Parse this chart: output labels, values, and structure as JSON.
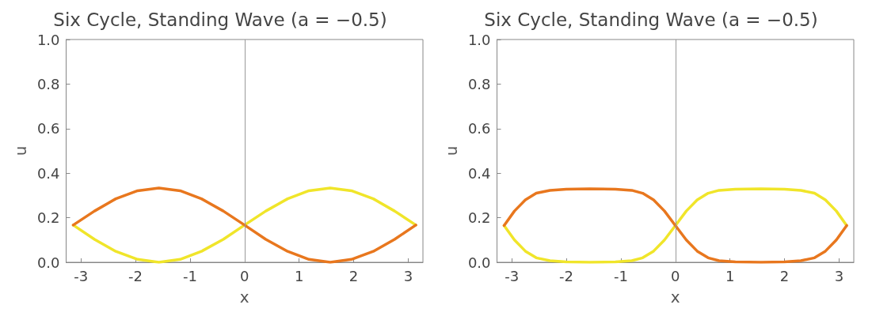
{
  "chart_data": [
    {
      "type": "line",
      "title": "Six Cycle, Standing Wave (a = −0.5)",
      "xlabel": "x",
      "ylabel": "u",
      "xlim": [
        -3.27,
        3.27
      ],
      "ylim": [
        0,
        1
      ],
      "xticks": [
        -3,
        -2,
        -1,
        0,
        1,
        2,
        3
      ],
      "yticks": [
        {
          "value": 0,
          "label": "0.0"
        },
        {
          "value": 0.2,
          "label": "0.2"
        },
        {
          "value": 0.4,
          "label": "0.4"
        },
        {
          "value": 0.6,
          "label": "0.6"
        },
        {
          "value": 0.8,
          "label": "0.8"
        },
        {
          "value": 1,
          "label": "1.0"
        }
      ],
      "grid": false,
      "marker": "none",
      "line_style": "solid",
      "ref_lines": [
        {
          "axis": "x",
          "value": 0,
          "color": "#999999"
        }
      ],
      "x": [
        -3.14,
        -2.75,
        -2.36,
        -1.96,
        -1.57,
        -1.18,
        -0.79,
        -0.39,
        0,
        0.39,
        0.79,
        1.18,
        1.57,
        1.96,
        2.36,
        2.75,
        3.14
      ],
      "series": [
        {
          "color": "#f0e52a",
          "values": [
            0.167,
            0.103,
            0.049,
            0.013,
            0,
            0.013,
            0.049,
            0.103,
            0.167,
            0.23,
            0.285,
            0.321,
            0.333,
            0.321,
            0.285,
            0.23,
            0.167
          ]
        },
        {
          "color": "#e8771e",
          "values": [
            0.167,
            0.23,
            0.285,
            0.321,
            0.333,
            0.321,
            0.285,
            0.23,
            0.167,
            0.103,
            0.049,
            0.013,
            0,
            0.013,
            0.049,
            0.103,
            0.167
          ]
        }
      ]
    },
    {
      "type": "line",
      "title": "Six Cycle, Standing Wave (a = −0.5)",
      "xlabel": "x",
      "ylabel": "u",
      "xlim": [
        -3.27,
        3.27
      ],
      "ylim": [
        0,
        1
      ],
      "xticks": [
        -3,
        -2,
        -1,
        0,
        1,
        2,
        3
      ],
      "yticks": [
        {
          "value": 0,
          "label": "0.0"
        },
        {
          "value": 0.2,
          "label": "0.2"
        },
        {
          "value": 0.4,
          "label": "0.4"
        },
        {
          "value": 0.6,
          "label": "0.6"
        },
        {
          "value": 0.8,
          "label": "0.8"
        },
        {
          "value": 1,
          "label": "1.0"
        }
      ],
      "grid": false,
      "marker": "none",
      "line_style": "solid",
      "ref_lines": [
        {
          "axis": "x",
          "value": 0,
          "color": "#999999"
        }
      ],
      "x": [
        -3.14,
        -2.95,
        -2.75,
        -2.55,
        -2.3,
        -2,
        -1.57,
        -1.1,
        -0.8,
        -0.6,
        -0.4,
        -0.2,
        0,
        0.2,
        0.4,
        0.6,
        0.8,
        1.1,
        1.57,
        2,
        2.3,
        2.55,
        2.75,
        2.95,
        3.14
      ],
      "series": [
        {
          "color": "#f0e52a",
          "values": [
            0.165,
            0.1,
            0.05,
            0.02,
            0.007,
            0.002,
            0,
            0.002,
            0.007,
            0.02,
            0.05,
            0.1,
            0.165,
            0.23,
            0.28,
            0.31,
            0.323,
            0.328,
            0.33,
            0.328,
            0.323,
            0.31,
            0.28,
            0.23,
            0.165
          ]
        },
        {
          "color": "#e8771e",
          "values": [
            0.165,
            0.23,
            0.28,
            0.31,
            0.323,
            0.328,
            0.33,
            0.328,
            0.323,
            0.31,
            0.28,
            0.23,
            0.165,
            0.1,
            0.05,
            0.02,
            0.007,
            0.002,
            0,
            0.002,
            0.007,
            0.02,
            0.05,
            0.1,
            0.165
          ]
        }
      ]
    }
  ]
}
